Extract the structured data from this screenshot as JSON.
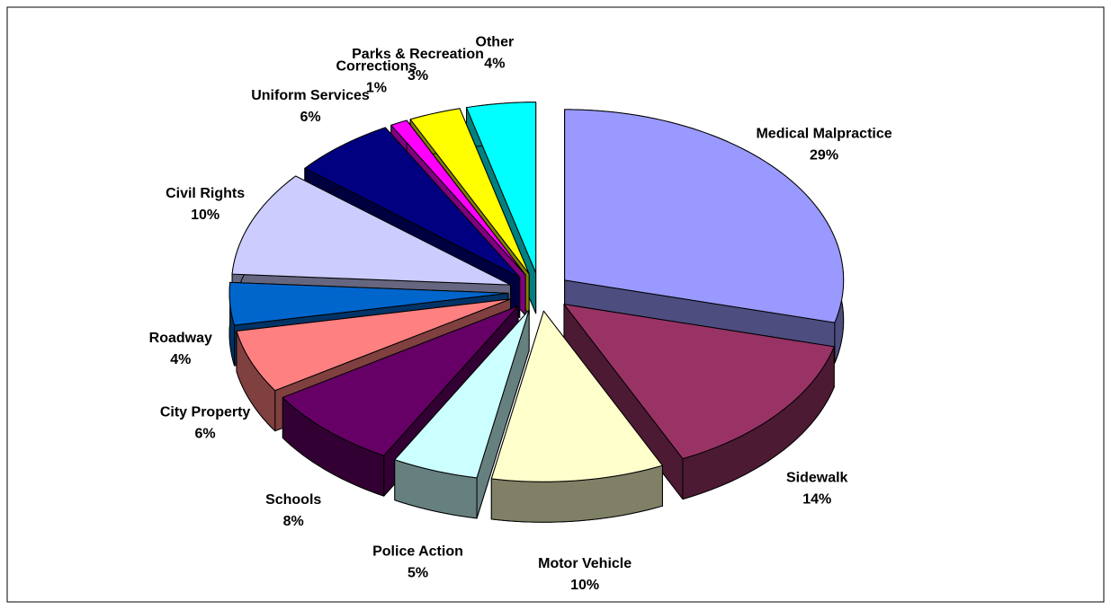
{
  "chart_data": {
    "type": "pie",
    "categories": [
      "Medical Malpractice",
      "Sidewalk",
      "Motor Vehicle",
      "Police Action",
      "Schools",
      "City Property",
      "Roadway",
      "Civil Rights",
      "Uniform Services",
      "Corrections",
      "Parks & Recreation",
      "Other"
    ],
    "values": [
      29,
      14,
      10,
      5,
      8,
      6,
      4,
      10,
      6,
      1,
      3,
      4
    ],
    "value_labels": [
      "29%",
      "14%",
      "10%",
      "5%",
      "8%",
      "6%",
      "4%",
      "10%",
      "6%",
      "1%",
      "3%",
      "4%"
    ],
    "colors": [
      "#9999ff",
      "#993366",
      "#ffffcc",
      "#ccffff",
      "#660066",
      "#ff8080",
      "#0066cc",
      "#ccccff",
      "#000080",
      "#ff00ff",
      "#ffff00",
      "#00ffff"
    ]
  }
}
